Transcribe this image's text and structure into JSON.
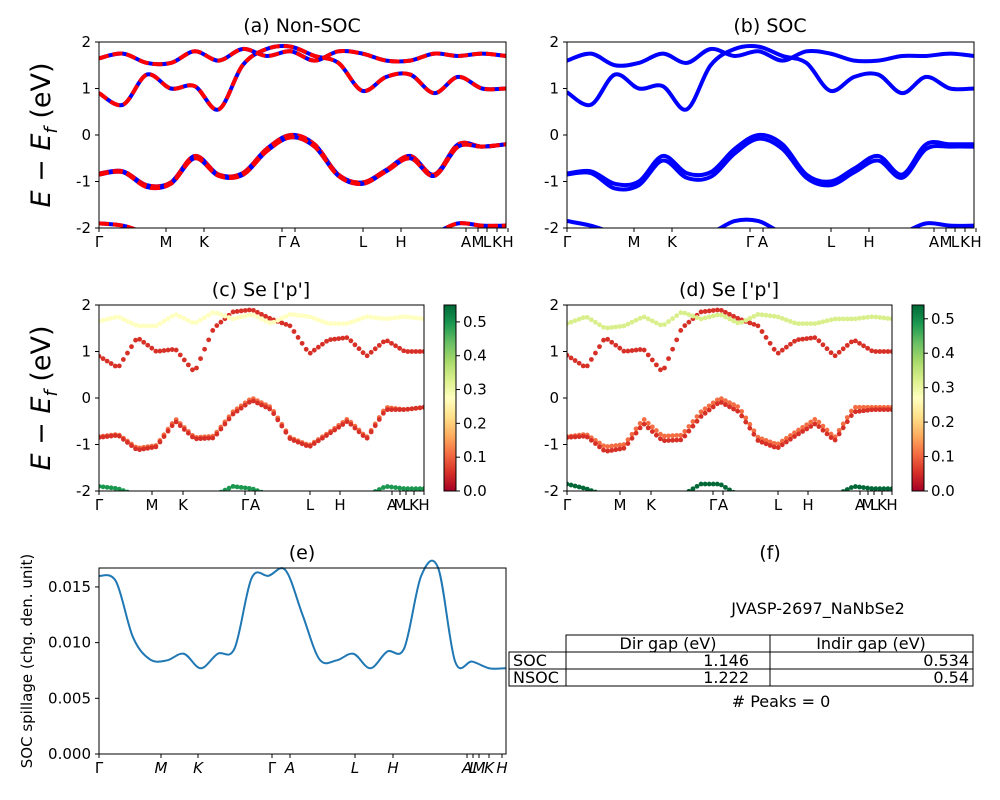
{
  "figure": {
    "ylabel_top": "E − E",
    "ylabel_sub": "f",
    "ylabel_unit": " (eV)",
    "table_title": "JVASP-2697_NaNbSe2",
    "peaks_text": "# Peaks = 0"
  },
  "colors": {
    "nonsoc_red": "#ff0000",
    "nonsoc_blue": "#0000ff",
    "soc_blue": "#0000ff",
    "spillage_line": "#1f77b4"
  },
  "chart_data": [
    {
      "panel": "a",
      "type": "line",
      "title": "(a) Non-SOC",
      "ylabel": "E − E_f (eV)",
      "ylim": [
        -2,
        2
      ],
      "yticks": [
        -2,
        -1,
        0,
        1,
        2
      ],
      "xticks": [
        "Γ",
        "M",
        "K",
        "Γ",
        "A",
        "L",
        "H",
        "A",
        "M",
        "L",
        "K",
        "H"
      ],
      "series": [
        {
          "values": [
            -0.83,
            -0.78,
            -1.08,
            -1.02,
            -0.45,
            -0.85,
            -0.82,
            -0.3,
            0.0,
            -0.2,
            -0.85,
            -1.02,
            -0.75,
            -0.45,
            -0.85,
            -0.2,
            -0.25,
            -0.2
          ]
        },
        {
          "values": [
            -0.85,
            -0.8,
            -1.12,
            -1.05,
            -0.5,
            -0.88,
            -0.86,
            -0.35,
            -0.05,
            -0.25,
            -0.88,
            -1.05,
            -0.78,
            -0.5,
            -0.88,
            -0.25,
            -0.25,
            -0.2
          ]
        },
        {
          "values": [
            0.9,
            0.65,
            1.3,
            1.0,
            1.05,
            0.55,
            1.5,
            1.85,
            1.9,
            1.7,
            1.55,
            0.95,
            1.25,
            1.3,
            0.9,
            1.25,
            1.0,
            1.0
          ]
        },
        {
          "values": [
            1.65,
            1.75,
            1.55,
            1.55,
            1.8,
            1.6,
            1.85,
            1.7,
            1.8,
            1.6,
            1.8,
            1.75,
            1.6,
            1.6,
            1.75,
            1.7,
            1.75,
            1.7
          ]
        },
        {
          "values": [
            -1.9,
            -1.95,
            -2.1,
            -2.1,
            -2.1,
            -2.1,
            -2.1,
            -2.1,
            -2.1,
            -2.1,
            -2.1,
            -2.1,
            -2.1,
            -2.1,
            -2.1,
            -1.9,
            -1.95,
            -1.95
          ]
        }
      ]
    },
    {
      "panel": "b",
      "type": "line",
      "title": "(b) SOC",
      "ylim": [
        -2,
        2
      ],
      "yticks": [
        -2,
        -1,
        0,
        1,
        2
      ],
      "xticks": [
        "Γ",
        "M",
        "K",
        "Γ",
        "A",
        "L",
        "H",
        "A",
        "M",
        "L",
        "K",
        "H"
      ],
      "series": [
        {
          "values": [
            -0.83,
            -0.78,
            -1.05,
            -1.0,
            -0.45,
            -0.82,
            -0.8,
            -0.3,
            0.0,
            -0.2,
            -0.85,
            -1.0,
            -0.72,
            -0.45,
            -0.85,
            -0.2,
            -0.2,
            -0.2
          ]
        },
        {
          "values": [
            -0.85,
            -0.82,
            -1.15,
            -1.08,
            -0.55,
            -0.92,
            -0.9,
            -0.4,
            -0.08,
            -0.3,
            -0.92,
            -1.08,
            -0.8,
            -0.55,
            -0.92,
            -0.3,
            -0.25,
            -0.25
          ]
        },
        {
          "values": [
            0.92,
            0.65,
            1.3,
            1.0,
            1.05,
            0.55,
            1.5,
            1.85,
            1.9,
            1.7,
            1.55,
            0.95,
            1.25,
            1.3,
            0.9,
            1.25,
            1.0,
            1.0
          ]
        },
        {
          "values": [
            1.6,
            1.75,
            1.5,
            1.55,
            1.75,
            1.55,
            1.85,
            1.7,
            1.8,
            1.6,
            1.8,
            1.75,
            1.6,
            1.6,
            1.7,
            1.7,
            1.75,
            1.7
          ]
        },
        {
          "values": [
            -1.85,
            -1.95,
            -2.1,
            -2.1,
            -2.1,
            -2.1,
            -2.1,
            -1.85,
            -1.85,
            -2.1,
            -2.1,
            -2.1,
            -2.1,
            -2.1,
            -2.1,
            -1.9,
            -1.95,
            -1.95
          ]
        }
      ]
    },
    {
      "panel": "c",
      "type": "scatter",
      "title": "(c)  Se ['p']",
      "ylabel": "E − E_f (eV)",
      "ylim": [
        -2,
        2
      ],
      "yticks": [
        -2,
        -1,
        0,
        1,
        2
      ],
      "xticks": [
        "Γ",
        "M",
        "K",
        "Γ",
        "A",
        "L",
        "H",
        "A",
        "M",
        "L",
        "K",
        "H"
      ],
      "colorbar": {
        "min": 0.0,
        "max": 0.55,
        "ticks": [
          "0.0",
          "0.1",
          "0.2",
          "0.3",
          "0.4",
          "0.5"
        ],
        "colormap": "RdYlGn"
      },
      "series": [
        {
          "weight": 0.12,
          "values": [
            -0.83,
            -0.78,
            -1.08,
            -1.02,
            -0.45,
            -0.85,
            -0.82,
            -0.3,
            0.0,
            -0.2,
            -0.85,
            -1.02,
            -0.75,
            -0.45,
            -0.85,
            -0.2,
            -0.25,
            -0.2
          ]
        },
        {
          "weight": 0.05,
          "values": [
            -0.85,
            -0.8,
            -1.12,
            -1.05,
            -0.5,
            -0.88,
            -0.86,
            -0.35,
            -0.05,
            -0.25,
            -0.88,
            -1.05,
            -0.78,
            -0.5,
            -0.88,
            -0.25,
            -0.25,
            -0.2
          ]
        },
        {
          "weight": 0.08,
          "values": [
            0.9,
            0.65,
            1.3,
            1.0,
            1.05,
            0.55,
            1.5,
            1.85,
            1.9,
            1.7,
            1.55,
            0.95,
            1.25,
            1.3,
            0.9,
            1.25,
            1.0,
            1.0
          ]
        },
        {
          "weight": 0.3,
          "values": [
            1.65,
            1.75,
            1.55,
            1.55,
            1.8,
            1.6,
            1.85,
            1.7,
            1.8,
            1.6,
            1.8,
            1.75,
            1.6,
            1.6,
            1.75,
            1.7,
            1.75,
            1.7
          ]
        },
        {
          "weight": 0.52,
          "values": [
            -1.9,
            -1.95,
            -2.1,
            -2.1,
            -2.1,
            -2.1,
            -2.1,
            -1.9,
            -1.95,
            -2.1,
            -2.1,
            -2.1,
            -2.1,
            -2.1,
            -2.1,
            -1.9,
            -1.95,
            -1.95
          ]
        }
      ]
    },
    {
      "panel": "d",
      "type": "scatter",
      "title": "(d) Se ['p']",
      "ylim": [
        -2,
        2
      ],
      "yticks": [
        -2,
        -1,
        0,
        1,
        2
      ],
      "xticks": [
        "Γ",
        "M",
        "K",
        "Γ",
        "A",
        "L",
        "H",
        "A",
        "M",
        "L",
        "K",
        "H"
      ],
      "colorbar": {
        "min": 0.0,
        "max": 0.54,
        "ticks": [
          "0.0",
          "0.1",
          "0.2",
          "0.3",
          "0.4",
          "0.5"
        ],
        "colormap": "RdYlGn"
      },
      "series": [
        {
          "weight": 0.12,
          "values": [
            -0.83,
            -0.78,
            -1.05,
            -1.0,
            -0.45,
            -0.82,
            -0.8,
            -0.3,
            0.0,
            -0.2,
            -0.85,
            -1.0,
            -0.72,
            -0.45,
            -0.85,
            -0.2,
            -0.2,
            -0.2
          ]
        },
        {
          "weight": 0.05,
          "values": [
            -0.85,
            -0.82,
            -1.15,
            -1.08,
            -0.55,
            -0.92,
            -0.9,
            -0.4,
            -0.08,
            -0.3,
            -0.92,
            -1.08,
            -0.8,
            -0.55,
            -0.92,
            -0.3,
            -0.25,
            -0.25
          ]
        },
        {
          "weight": 0.08,
          "values": [
            0.92,
            0.65,
            1.3,
            1.0,
            1.05,
            0.55,
            1.5,
            1.85,
            1.9,
            1.7,
            1.55,
            0.95,
            1.25,
            1.3,
            0.9,
            1.25,
            1.0,
            1.0
          ]
        },
        {
          "weight": 0.3,
          "values": [
            1.6,
            1.75,
            1.5,
            1.55,
            1.75,
            1.55,
            1.85,
            1.7,
            1.8,
            1.6,
            1.8,
            1.75,
            1.6,
            1.6,
            1.7,
            1.7,
            1.75,
            1.7
          ]
        },
        {
          "weight": 0.52,
          "values": [
            -1.85,
            -1.95,
            -2.1,
            -2.1,
            -2.1,
            -2.1,
            -2.1,
            -1.85,
            -1.85,
            -2.1,
            -2.1,
            -2.1,
            -2.1,
            -2.1,
            -2.1,
            -1.9,
            -1.95,
            -1.95
          ]
        }
      ]
    },
    {
      "panel": "e",
      "type": "line",
      "title": "(e)",
      "ylabel": "SOC spillage (chg. den. unit)",
      "ylim": [
        0.0,
        0.0167
      ],
      "yticks": [
        "0.000",
        "0.005",
        "0.010",
        "0.015"
      ],
      "xticks": [
        "Γ",
        "M",
        "K",
        "Γ",
        "A",
        "L",
        "H",
        "A",
        "L",
        "M",
        "K",
        "H"
      ],
      "series": [
        {
          "values": [
            0.016,
            0.0155,
            0.0105,
            0.0085,
            0.0084,
            0.009,
            0.0077,
            0.009,
            0.0095,
            0.0158,
            0.016,
            0.0165,
            0.0125,
            0.0085,
            0.0084,
            0.009,
            0.0077,
            0.0092,
            0.0095,
            0.016,
            0.0167,
            0.0083,
            0.0083,
            0.0077,
            0.0077
          ]
        }
      ]
    },
    {
      "panel": "f",
      "type": "table",
      "title": "(f)",
      "columns": [
        "Dir gap (eV)",
        "Indir gap (eV)"
      ],
      "rows": [
        {
          "label": "SOC",
          "values": [
            "1.146",
            "0.534"
          ]
        },
        {
          "label": "NSOC",
          "values": [
            "1.222",
            "0.54"
          ]
        }
      ]
    }
  ]
}
